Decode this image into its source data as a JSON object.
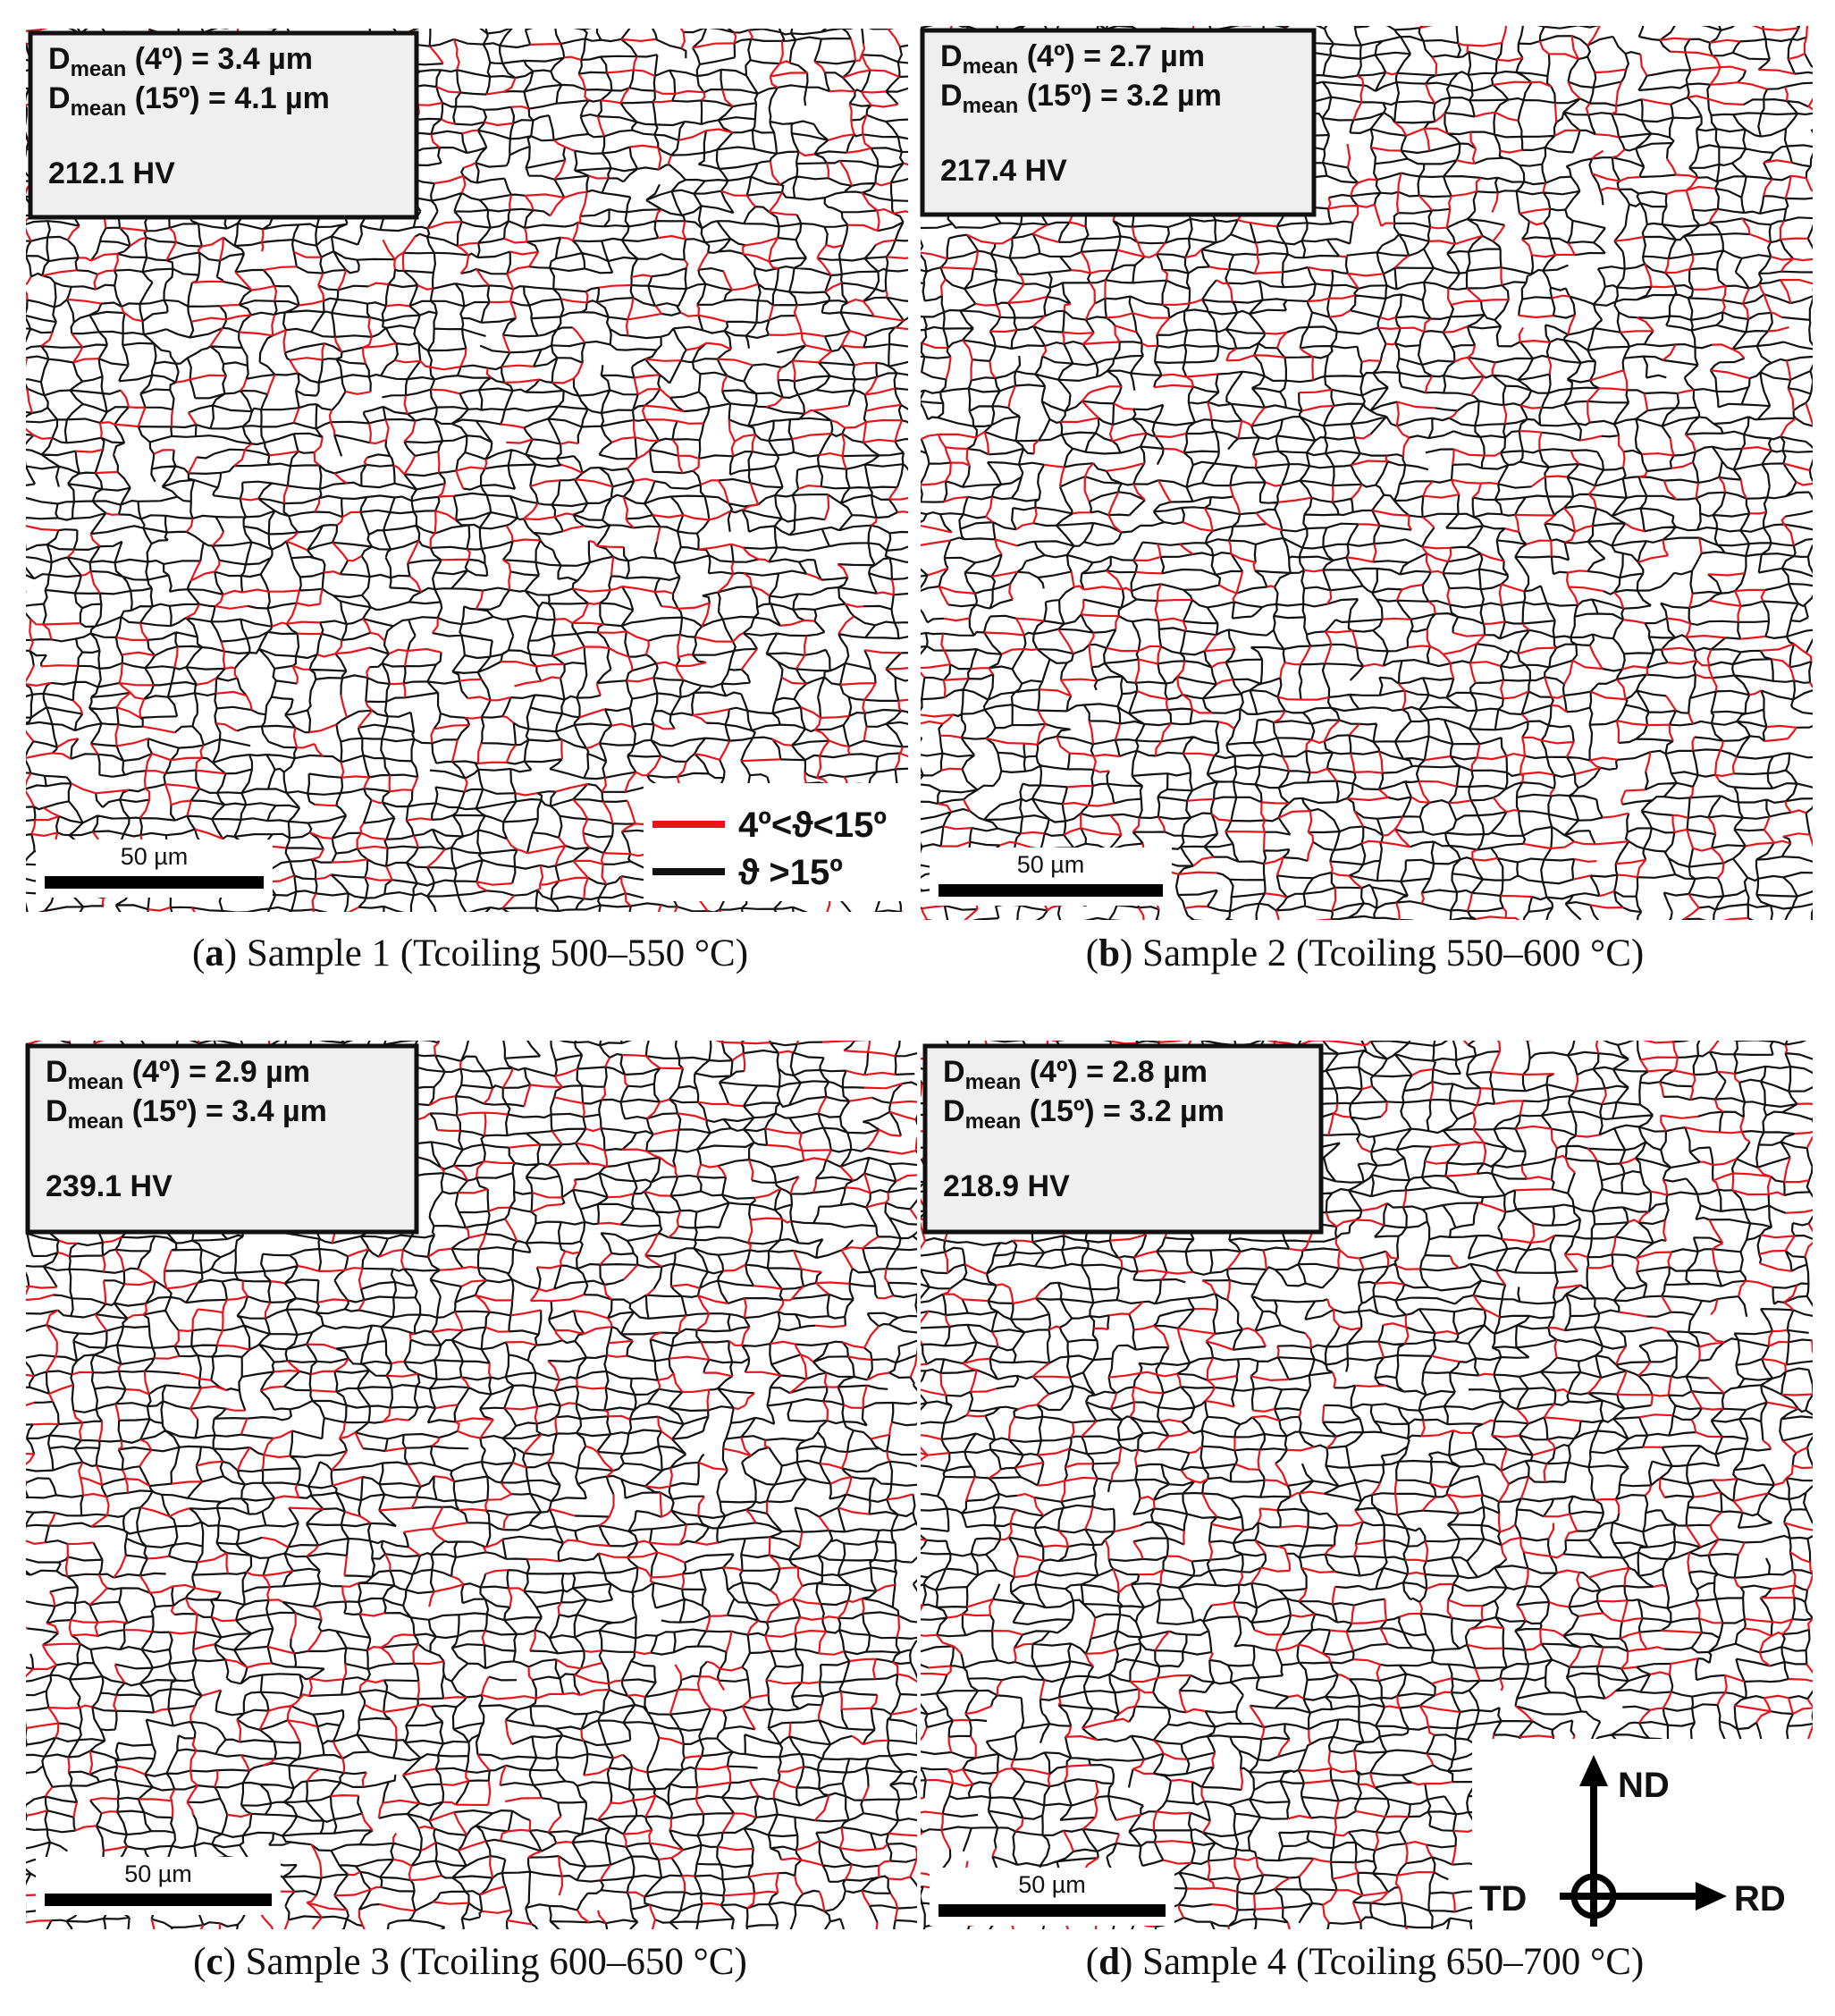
{
  "panels": [
    {
      "info": {
        "d4": {
          "D": "D",
          "sub": "mean",
          "rest": " (4º) = 3.4 µm"
        },
        "d15": {
          "D": "D",
          "sub": "mean",
          "rest": " (15º) = 4.1 µm"
        },
        "hv": "212.1 HV"
      },
      "scale_bar": "50 µm",
      "caption": {
        "open": "(",
        "letter": "a",
        "rest": ") Sample 1 (Tcoiling 500–550 °C)"
      }
    },
    {
      "info": {
        "d4": {
          "D": "D",
          "sub": "mean",
          "rest": " (4º) = 2.7 µm"
        },
        "d15": {
          "D": "D",
          "sub": "mean",
          "rest": " (15º) = 3.2 µm"
        },
        "hv": "217.4 HV"
      },
      "scale_bar": "50 µm",
      "caption": {
        "open": "(",
        "letter": "b",
        "rest": ") Sample 2 (Tcoiling 550–600 °C)"
      }
    },
    {
      "info": {
        "d4": {
          "D": "D",
          "sub": "mean",
          "rest": " (4º) = 2.9 µm"
        },
        "d15": {
          "D": "D",
          "sub": "mean",
          "rest": " (15º) = 3.4 µm"
        },
        "hv": "239.1 HV"
      },
      "scale_bar": "50 µm",
      "caption": {
        "open": "(",
        "letter": "c",
        "rest": ") Sample 3 (Tcoiling 600–650 °C)"
      }
    },
    {
      "info": {
        "d4": {
          "D": "D",
          "sub": "mean",
          "rest": " (4º) = 2.8 µm"
        },
        "d15": {
          "D": "D",
          "sub": "mean",
          "rest": " (15º) = 3.2 µm"
        },
        "hv": "218.9 HV"
      },
      "scale_bar": "50 µm",
      "caption": {
        "open": "(",
        "letter": "d",
        "rest": ") Sample 4 (Tcoiling 650–700 °C)"
      }
    }
  ],
  "legend": {
    "low": "4º<ϑ<15º",
    "high": "ϑ >15º"
  },
  "axes": {
    "nd": "ND",
    "td": "TD",
    "rd": "RD"
  }
}
